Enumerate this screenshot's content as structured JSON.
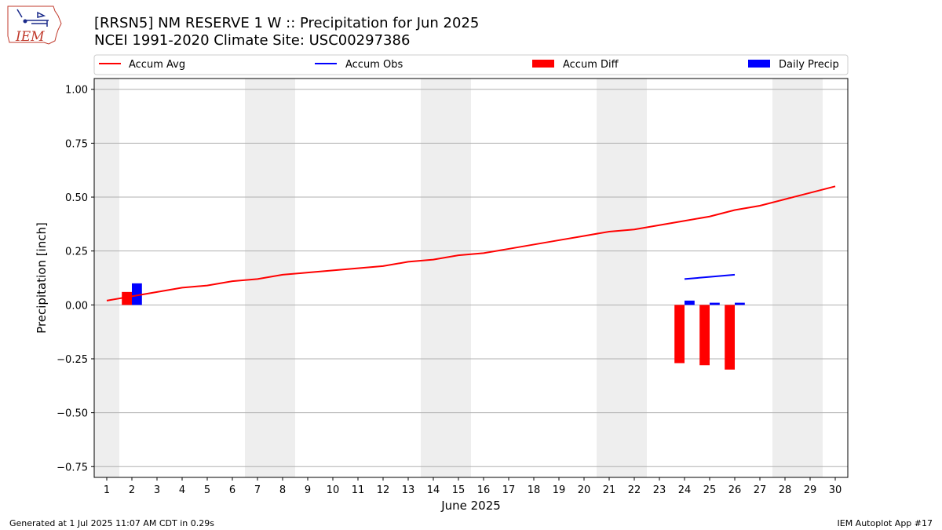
{
  "header": {
    "title_line1": "[RRSN5] NM RESERVE 1 W :: Precipitation for Jun 2025",
    "title_line2": "NCEI 1991-2020 Climate Site: USC00297386",
    "logo_text": "IEM"
  },
  "footer": {
    "generated": "Generated at 1 Jul 2025 11:07 AM CDT in 0.29s",
    "app": "IEM Autoplot App #17"
  },
  "colors": {
    "accum_avg": "#ff0000",
    "accum_obs": "#0000ff",
    "accum_diff": "#ff0000",
    "daily_precip": "#0000ff",
    "weekend_band": "#eeeeee",
    "grid": "#b0b0b0"
  },
  "chart_data": {
    "type": "bar",
    "xlabel": "June 2025",
    "ylabel": "Precipitation [inch]",
    "xlim": [
      0.5,
      30.5
    ],
    "ylim": [
      -0.8,
      1.05
    ],
    "xticks": [
      "1",
      "2",
      "3",
      "4",
      "5",
      "6",
      "7",
      "8",
      "9",
      "10",
      "11",
      "12",
      "13",
      "14",
      "15",
      "16",
      "17",
      "18",
      "19",
      "20",
      "21",
      "22",
      "23",
      "24",
      "25",
      "26",
      "27",
      "28",
      "29",
      "30"
    ],
    "yticks": [
      -0.75,
      -0.5,
      -0.25,
      0.0,
      0.25,
      0.5,
      0.75,
      1.0
    ],
    "ytick_labels": [
      "−0.75",
      "−0.50",
      "−0.25",
      "0.00",
      "0.25",
      "0.50",
      "0.75",
      "1.00"
    ],
    "grid": "horizontal",
    "legend_position": "top",
    "weekend_bands": [
      [
        0.5,
        1.5
      ],
      [
        6.5,
        8.5
      ],
      [
        13.5,
        15.5
      ],
      [
        20.5,
        22.5
      ],
      [
        27.5,
        29.5
      ]
    ],
    "legend": [
      "Accum Avg",
      "Accum Obs",
      "Accum Diff",
      "Daily Precip"
    ],
    "series": [
      {
        "name": "Accum Avg",
        "kind": "line",
        "x": [
          1,
          2,
          3,
          4,
          5,
          6,
          7,
          8,
          9,
          10,
          11,
          12,
          13,
          14,
          15,
          16,
          17,
          18,
          19,
          20,
          21,
          22,
          23,
          24,
          25,
          26,
          27,
          28,
          29,
          30
        ],
        "values": [
          0.02,
          0.04,
          0.06,
          0.08,
          0.09,
          0.11,
          0.12,
          0.14,
          0.15,
          0.16,
          0.17,
          0.18,
          0.2,
          0.21,
          0.23,
          0.24,
          0.26,
          0.28,
          0.3,
          0.32,
          0.34,
          0.35,
          0.37,
          0.39,
          0.41,
          0.44,
          0.46,
          0.49,
          0.52,
          0.55
        ]
      },
      {
        "name": "Accum Obs",
        "kind": "line",
        "x": [
          24,
          25,
          26
        ],
        "values": [
          0.12,
          0.13,
          0.14
        ]
      },
      {
        "name": "Accum Diff",
        "kind": "bar",
        "x": [
          2,
          24,
          25,
          26
        ],
        "values": [
          0.06,
          -0.27,
          -0.28,
          -0.3
        ]
      },
      {
        "name": "Daily Precip",
        "kind": "bar",
        "x": [
          2,
          24,
          25,
          26
        ],
        "values": [
          0.1,
          0.02,
          0.01,
          0.01
        ]
      }
    ]
  }
}
